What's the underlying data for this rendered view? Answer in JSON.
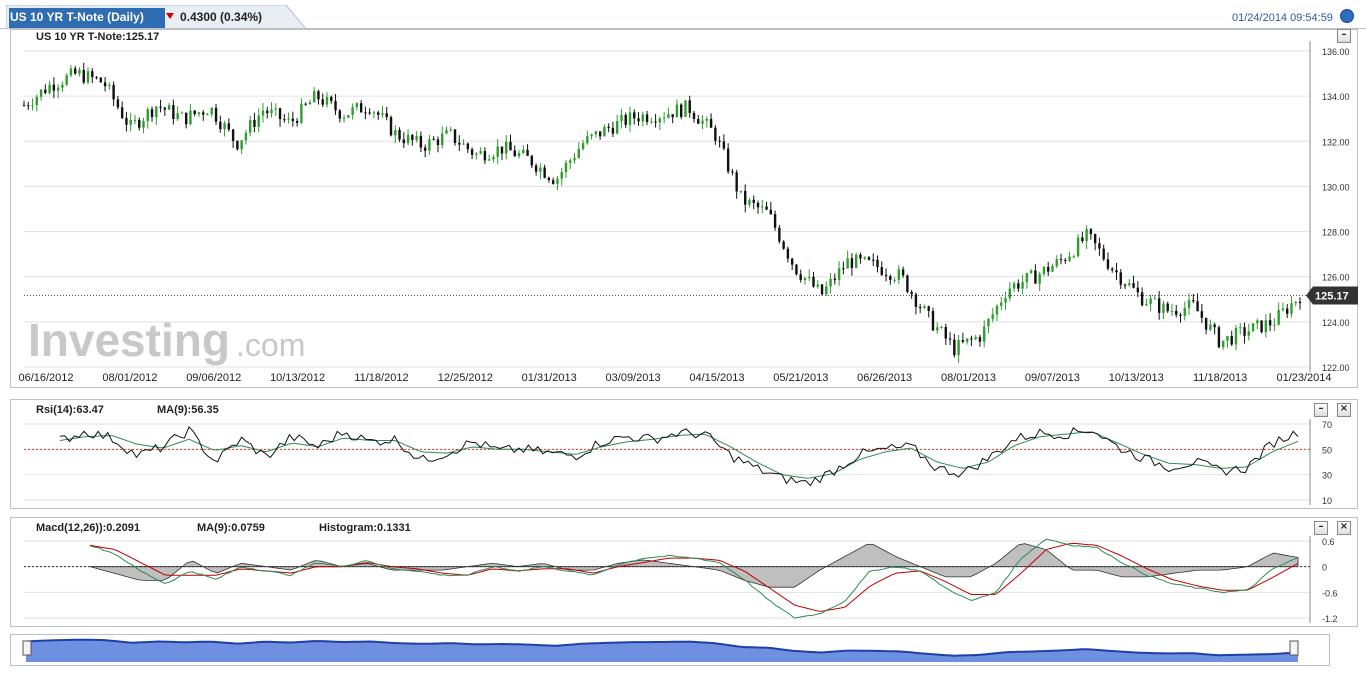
{
  "header": {
    "tab_title": "US 10 YR T-Note (Daily)",
    "change": "0.4300 (0.34%)",
    "change_direction": "down",
    "timestamp": "01/24/2014 09:54:59",
    "watermark_main": "Investing",
    "watermark_suffix": ".com"
  },
  "main_panel": {
    "label": "US 10 YR T-Note:125.17",
    "last_price_badge": "125.17",
    "y_ticks": [
      "136.00",
      "134.00",
      "132.00",
      "130.00",
      "128.00",
      "126.00",
      "124.00",
      "122.00"
    ],
    "x_ticks": [
      "06/16/2012",
      "08/01/2012",
      "09/06/2012",
      "10/13/2012",
      "11/18/2012",
      "12/25/2012",
      "01/31/2013",
      "03/09/2013",
      "04/15/2013",
      "05/21/2013",
      "06/26/2013",
      "08/01/2013",
      "09/07/2013",
      "10/13/2013",
      "11/18/2013",
      "01/23/2014"
    ]
  },
  "rsi_panel": {
    "label_rsi": "Rsi(14):63.47",
    "label_ma": "MA(9):56.35",
    "y_ticks": [
      "70",
      "50",
      "30",
      "10"
    ]
  },
  "macd_panel": {
    "label_macd": "Macd(12,26)):0.2091",
    "label_ma": "MA(9):0.0759",
    "label_hist": "Histogram:0.1331",
    "y_ticks": [
      "0.6",
      "0",
      "-0.6",
      "-1.2"
    ]
  },
  "colors": {
    "up": "#2e9e2e",
    "down": "#111111",
    "rsi": "#111111",
    "rsi_ma": "#2e8b57",
    "macd_line": "#111111",
    "macd_ma": "#c00000",
    "macd_ma_2": "#2e8b57",
    "hist_fill": "#8a8a8a",
    "ref_line": "#d04040",
    "nav_fill": "#6f8fe0",
    "nav_line": "#1f3fa8"
  },
  "chart_data": {
    "type": "candlestick",
    "title": "US 10 YR T-Note (Daily)",
    "x_range": [
      "06/16/2012",
      "01/23/2014"
    ],
    "ylim": [
      122,
      136.5
    ],
    "last": 125.17,
    "series": [
      {
        "name": "US 10 YR T-Note",
        "dates": [
          "06/16/2012",
          "07/02/2012",
          "07/16/2012",
          "08/01/2012",
          "08/14/2012",
          "08/27/2012",
          "09/06/2012",
          "09/20/2012",
          "10/01/2012",
          "10/13/2012",
          "10/26/2012",
          "11/06/2012",
          "11/18/2012",
          "12/01/2012",
          "12/13/2012",
          "12/25/2012",
          "01/10/2013",
          "01/20/2013",
          "01/31/2013",
          "02/12/2013",
          "02/25/2013",
          "03/09/2013",
          "03/20/2013",
          "04/01/2013",
          "04/15/2013",
          "04/26/2013",
          "05/08/2013",
          "05/21/2013",
          "05/31/2013",
          "06/10/2013",
          "06/26/2013",
          "07/05/2013",
          "07/18/2013",
          "08/01/2013",
          "08/15/2013",
          "08/28/2013",
          "09/07/2013",
          "09/17/2013",
          "09/30/2013",
          "10/13/2013",
          "10/24/2013",
          "11/06/2013",
          "11/18/2013",
          "11/29/2013",
          "12/10/2013",
          "12/20/2013",
          "01/02/2014",
          "01/13/2014",
          "01/23/2014"
        ],
        "values": [
          133.6,
          134.5,
          135.0,
          134.6,
          132.6,
          133.6,
          133.0,
          133.5,
          131.9,
          133.4,
          132.8,
          134.0,
          133.2,
          133.6,
          132.3,
          131.8,
          132.3,
          131.4,
          131.7,
          131.2,
          130.3,
          131.9,
          132.6,
          133.1,
          133.2,
          133.5,
          132.3,
          129.4,
          128.8,
          126.4,
          125.2,
          126.7,
          126.5,
          126.0,
          124.2,
          122.8,
          123.4,
          125.5,
          126.0,
          126.7,
          127.8,
          126.3,
          125.1,
          124.5,
          124.7,
          123.1,
          123.6,
          124.0,
          125.17
        ]
      }
    ]
  },
  "rsi_data": {
    "values": [
      57,
      64,
      59,
      45,
      52,
      65,
      40,
      58,
      44,
      60,
      52,
      64,
      56,
      58,
      41,
      47,
      56,
      49,
      50,
      47,
      45,
      56,
      60,
      58,
      63,
      62,
      45,
      35,
      27,
      23,
      33,
      46,
      50,
      52,
      35,
      31,
      43,
      58,
      63,
      62,
      66,
      52,
      43,
      36,
      40,
      33,
      35,
      55,
      63.47
    ],
    "ma": [
      57,
      60,
      61,
      54,
      51,
      58,
      49,
      53,
      48,
      55,
      52,
      59,
      57,
      57,
      48,
      47,
      52,
      50,
      50,
      48,
      46,
      52,
      56,
      58,
      61,
      62,
      52,
      40,
      30,
      27,
      31,
      42,
      48,
      51,
      40,
      35,
      40,
      53,
      60,
      62,
      64,
      55,
      46,
      39,
      38,
      35,
      36,
      48,
      56.35
    ]
  },
  "macd_data": {
    "macd": [
      0.5,
      0.3,
      -0.1,
      -0.4,
      -0.1,
      -0.3,
      0.0,
      -0.1,
      -0.2,
      0.1,
      0.0,
      0.15,
      -0.05,
      -0.1,
      -0.2,
      -0.2,
      0.0,
      -0.1,
      0.0,
      -0.1,
      -0.2,
      0.05,
      0.2,
      0.25,
      0.2,
      0.1,
      -0.3,
      -0.8,
      -1.2,
      -1.1,
      -0.8,
      -0.1,
      0.0,
      -0.1,
      -0.5,
      -0.8,
      -0.6,
      0.2,
      0.65,
      0.5,
      0.45,
      0.1,
      -0.2,
      -0.4,
      -0.5,
      -0.6,
      -0.55,
      -0.05,
      0.2091
    ],
    "ma": [
      0.5,
      0.4,
      0.1,
      -0.2,
      -0.2,
      -0.2,
      -0.05,
      -0.1,
      -0.15,
      0.0,
      0.0,
      0.1,
      0.0,
      -0.05,
      -0.15,
      -0.2,
      -0.05,
      -0.1,
      -0.05,
      -0.05,
      -0.15,
      0.0,
      0.1,
      0.2,
      0.2,
      0.15,
      -0.1,
      -0.5,
      -0.9,
      -1.05,
      -0.95,
      -0.45,
      -0.15,
      -0.1,
      -0.35,
      -0.65,
      -0.65,
      -0.15,
      0.4,
      0.55,
      0.5,
      0.25,
      -0.05,
      -0.3,
      -0.45,
      -0.55,
      -0.55,
      -0.25,
      0.0759
    ]
  }
}
